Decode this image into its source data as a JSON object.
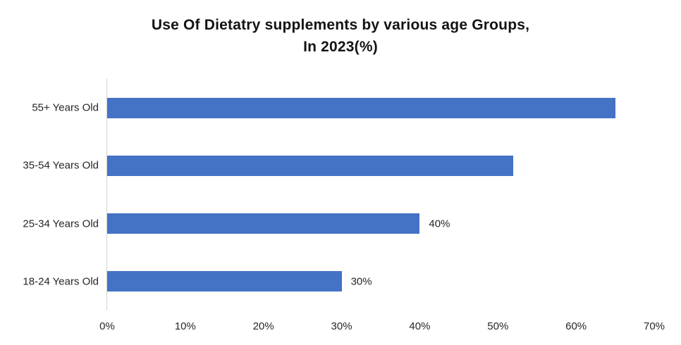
{
  "chart_data": {
    "type": "bar",
    "orientation": "horizontal",
    "title_lines": [
      "Use Of Dietatry supplements by various age Groups,",
      "In 2023(%)"
    ],
    "categories": [
      "55+ Years Old",
      "35-54 Years Old",
      "25-34 Years Old",
      "18-24 Years Old"
    ],
    "values": [
      65,
      52,
      40,
      30
    ],
    "data_labels": [
      null,
      null,
      "40%",
      "30%"
    ],
    "x_tick_labels": [
      "0%",
      "10%",
      "20%",
      "30%",
      "40%",
      "50%",
      "60%",
      "70%"
    ],
    "xlim": [
      0,
      70
    ],
    "grid": false,
    "legend": false,
    "colors": {
      "bar": "#4472C4",
      "axis_line": "#d4d4d4",
      "tick_text": "#262626",
      "title_text": "#131313"
    }
  }
}
